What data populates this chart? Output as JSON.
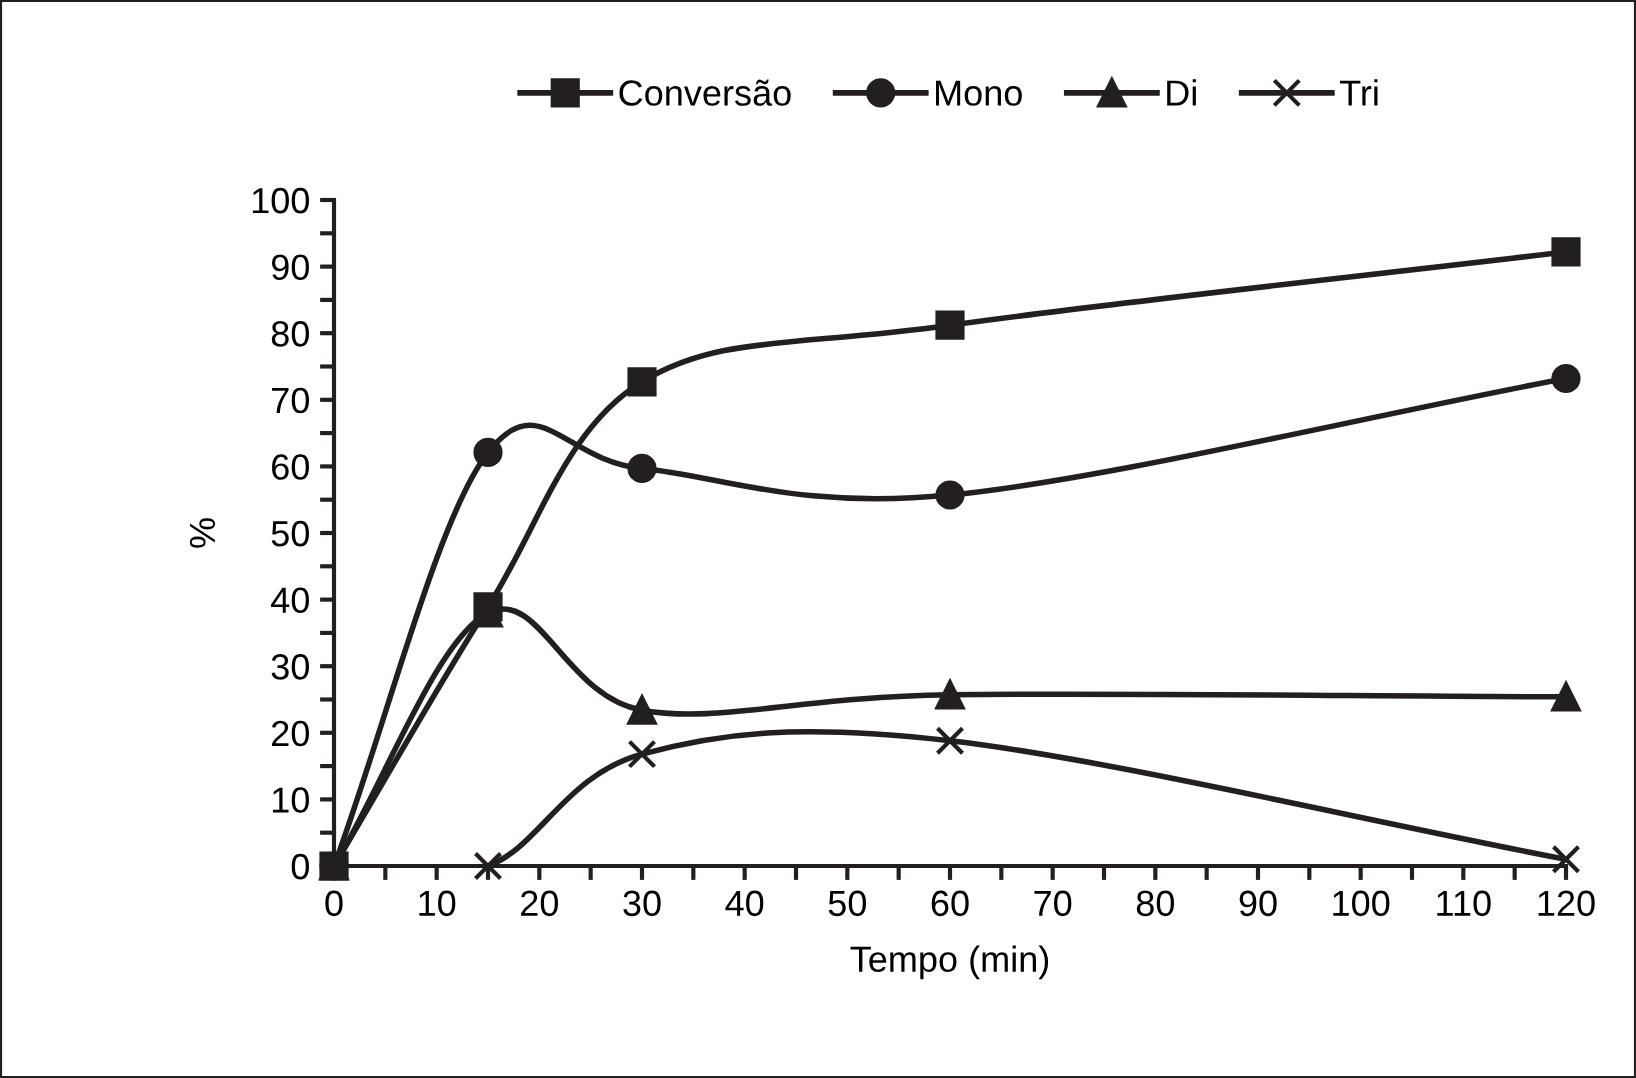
{
  "chart_data": {
    "type": "line",
    "xlabel": "Tempo (min)",
    "ylabel": "%",
    "x": [
      0,
      15,
      30,
      60,
      120
    ],
    "series": [
      {
        "name": "Conversão",
        "color": "#231f20",
        "marker": "square",
        "values": [
          0,
          38.9,
          72.7,
          81.2,
          92.2
        ]
      },
      {
        "name": "Mono",
        "color": "#231f20",
        "marker": "circle",
        "values": [
          0,
          62.1,
          59.7,
          55.7,
          73.2
        ]
      },
      {
        "name": "Di",
        "color": "#231f20",
        "marker": "triangle",
        "values": [
          0,
          38,
          23.4,
          25.7,
          25.4
        ]
      },
      {
        "name": "Tri",
        "color": "#231f20",
        "marker": "cross",
        "values": [
          0,
          0,
          16.8,
          18.8,
          1.0
        ]
      }
    ],
    "xlim": [
      0,
      120
    ],
    "xticks": [
      0,
      {
        "value": 5,
        "label": null
      },
      10,
      {
        "value": 15,
        "label": null
      },
      20,
      {
        "value": 25,
        "label": null
      },
      30,
      {
        "value": 35,
        "label": null
      },
      40,
      {
        "value": 45,
        "label": null
      },
      50,
      {
        "value": 55,
        "label": null
      },
      60,
      {
        "value": 65,
        "label": null
      },
      70,
      {
        "value": 75,
        "label": null
      },
      80,
      {
        "value": 85,
        "label": null
      },
      90,
      {
        "value": 95,
        "label": null
      },
      100,
      {
        "value": 105,
        "label": null
      },
      110,
      {
        "value": 115,
        "label": null
      },
      120
    ],
    "ylim": [
      0,
      100
    ],
    "yticks": [
      0,
      {
        "value": 5,
        "label": null
      },
      10,
      {
        "value": 15,
        "label": null
      },
      20,
      {
        "value": 25,
        "label": null
      },
      30,
      {
        "value": 35,
        "label": null
      },
      40,
      {
        "value": 45,
        "label": null
      },
      50,
      {
        "value": 55,
        "label": null
      },
      60,
      {
        "value": 65,
        "label": null
      },
      70,
      {
        "value": 75,
        "label": null
      },
      80,
      {
        "value": 85,
        "label": null
      },
      90,
      {
        "value": 95,
        "label": null
      },
      100
    ],
    "grid": false,
    "legend": "top",
    "line_style": "solid"
  }
}
